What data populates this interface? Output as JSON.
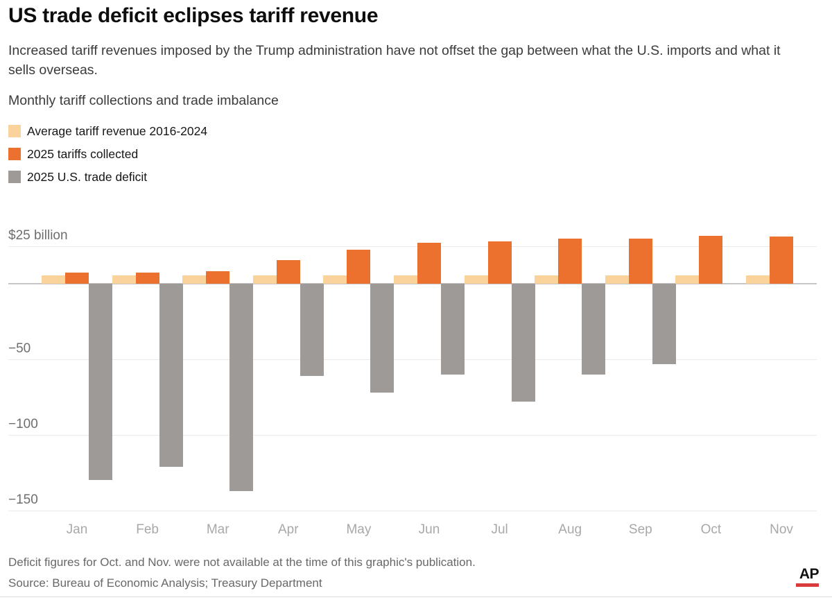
{
  "header": {
    "title": "US trade deficit eclipses tariff revenue",
    "subtitle": "Increased tariff revenues imposed by the Trump administration have not offset the gap between what the U.S. imports and what it sells overseas.",
    "section_label": "Monthly tariff collections and trade imbalance"
  },
  "legend": {
    "items": [
      {
        "key": "avg-tariff-revenue",
        "label": "Average tariff revenue 2016-2024",
        "color": "#F9D29C"
      },
      {
        "key": "tariffs-2025",
        "label": "2025 tariffs collected",
        "color": "#ED712E"
      },
      {
        "key": "trade-deficit-2025",
        "label": "2025 U.S. trade deficit",
        "color": "#9E9A98"
      }
    ]
  },
  "chart_data": {
    "type": "bar",
    "title": "Monthly tariff collections and trade imbalance",
    "unit": "billions of US dollars",
    "categories": [
      "Jan",
      "Feb",
      "Mar",
      "Apr",
      "May",
      "Jun",
      "Jul",
      "Aug",
      "Sep",
      "Oct",
      "Nov"
    ],
    "series": [
      {
        "key": "avg-tariff-revenue",
        "name": "Average tariff revenue 2016-2024",
        "color": "#F9D29C",
        "values": [
          5.5,
          5.5,
          5.5,
          5.5,
          5.5,
          5.5,
          5.5,
          5.5,
          5.5,
          5.5,
          5.5
        ]
      },
      {
        "key": "tariffs-2025",
        "name": "2025 tariffs collected",
        "color": "#ED712E",
        "values": [
          7.2,
          7.2,
          8.4,
          15.5,
          22.5,
          27,
          28,
          30,
          30,
          31.5,
          31
        ]
      },
      {
        "key": "trade-deficit-2025",
        "name": "2025 U.S. trade deficit",
        "color": "#9E9A98",
        "values": [
          -130,
          -121,
          -137,
          -61,
          -72,
          -60,
          -78,
          -60,
          -53,
          null,
          null
        ]
      }
    ],
    "y_axis": {
      "range": [
        -160,
        35
      ],
      "gridlines": [
        {
          "value": 25,
          "label": "$25 billion"
        },
        {
          "value": 0,
          "label": ""
        },
        {
          "value": -50,
          "label": "−50"
        },
        {
          "value": -100,
          "label": "−100"
        },
        {
          "value": -150,
          "label": "−150"
        }
      ]
    },
    "grid": true,
    "legend_position": "top-left"
  },
  "footer": {
    "note": "Deficit figures for Oct. and Nov. were not available at the time of this graphic's publication.",
    "source": "Source: Bureau of Economic Analysis; Treasury Department",
    "logo": "AP",
    "logo_underline_color": "#D93A3C"
  }
}
